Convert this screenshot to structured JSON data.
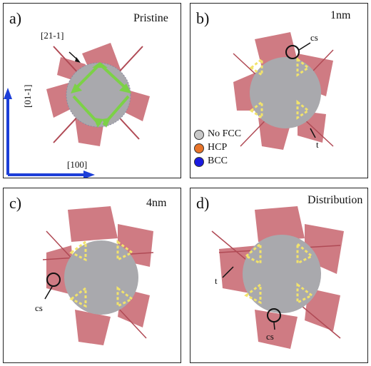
{
  "panels": [
    {
      "label": "a)",
      "title": "Pristine",
      "dir1": "[21-1]",
      "dir2": "[01-1]",
      "dir3": "[100]"
    },
    {
      "label": "b)",
      "title": "1nm",
      "ann1": "cs",
      "ann2": "t"
    },
    {
      "label": "c)",
      "title": "4nm",
      "ann1": "cs"
    },
    {
      "label": "d)",
      "title": "Distribution",
      "ann1": "t",
      "ann2": "cs"
    }
  ],
  "legend": [
    {
      "label": "No FCC",
      "color": "#c8c8c8"
    },
    {
      "label": "HCP",
      "color": "#e8742a"
    },
    {
      "label": "BCC",
      "color": "#1a1ae0"
    }
  ],
  "colors": {
    "green_arrows": "#7cd147",
    "axis_blue": "#1d3fd8",
    "triangles": "#f2e36b",
    "hcp_planes": "#c0505a"
  }
}
